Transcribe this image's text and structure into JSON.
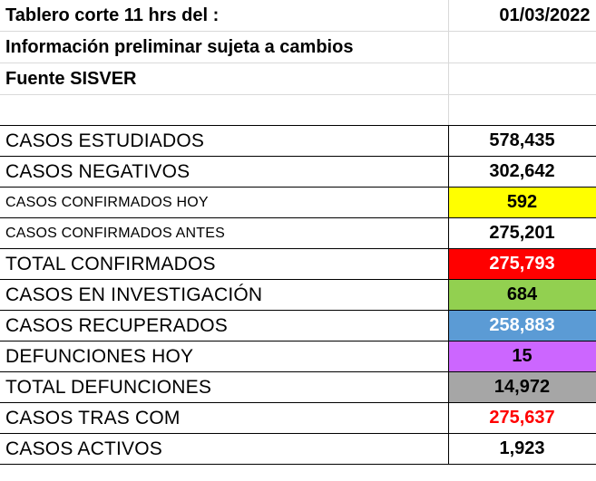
{
  "header": {
    "title": "Tablero corte 11 hrs del :",
    "date": "01/03/2022",
    "subtitle": "Información preliminar sujeta a cambios",
    "source": "Fuente SISVER"
  },
  "colors": {
    "yellow": "#ffff00",
    "red": "#ff0000",
    "green": "#92d050",
    "blue": "#5b9bd5",
    "purple": "#cc66ff",
    "gray": "#a6a6a6",
    "red_text": "#ff0000",
    "white_text": "#ffffff"
  },
  "rows": [
    {
      "label": "CASOS ESTUDIADOS",
      "value": "578,435",
      "bg": "",
      "fg": "#000000",
      "small": false
    },
    {
      "label": "CASOS NEGATIVOS",
      "value": "302,642",
      "bg": "",
      "fg": "#000000",
      "small": false
    },
    {
      "label": "CASOS CONFIRMADOS HOY",
      "value": "592",
      "bg": "#ffff00",
      "fg": "#000000",
      "small": true
    },
    {
      "label": "CASOS CONFIRMADOS ANTES",
      "value": "275,201",
      "bg": "",
      "fg": "#000000",
      "small": true
    },
    {
      "label": "TOTAL CONFIRMADOS",
      "value": "275,793",
      "bg": "#ff0000",
      "fg": "#ffffff",
      "small": false
    },
    {
      "label": "CASOS EN INVESTIGACIÓN",
      "value": "684",
      "bg": "#92d050",
      "fg": "#000000",
      "small": false
    },
    {
      "label": "CASOS RECUPERADOS",
      "value": "258,883",
      "bg": "#5b9bd5",
      "fg": "#ffffff",
      "small": false
    },
    {
      "label": "DEFUNCIONES HOY",
      "value": "15",
      "bg": "#cc66ff",
      "fg": "#000000",
      "small": false
    },
    {
      "label": "TOTAL DEFUNCIONES",
      "value": "14,972",
      "bg": "#a6a6a6",
      "fg": "#000000",
      "small": false
    },
    {
      "label": "CASOS TRAS COM",
      "value": "275,637",
      "bg": "",
      "fg": "#ff0000",
      "small": false
    },
    {
      "label": "CASOS ACTIVOS",
      "value": "1,923",
      "bg": "",
      "fg": "#000000",
      "small": false
    }
  ]
}
